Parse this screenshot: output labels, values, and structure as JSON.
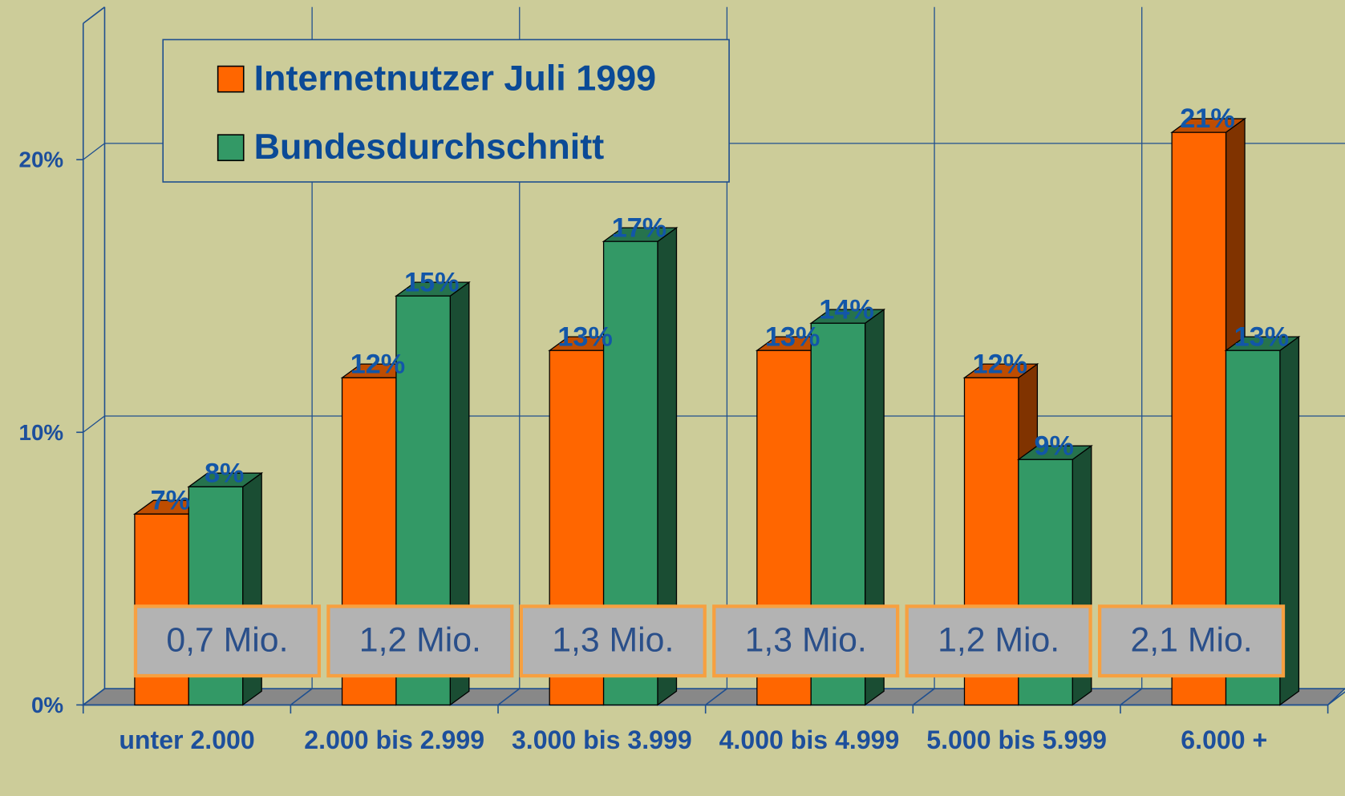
{
  "chart_data": {
    "type": "bar3d",
    "categories": [
      "unter 2.000",
      "2.000 bis 2.999",
      "3.000 bis 3.999",
      "4.000 bis 4.999",
      "5.000 bis 5.999",
      "6.000 +"
    ],
    "series": [
      {
        "name": "Internetnutzer Juli 1999",
        "color": "#ff6600",
        "values": [
          7,
          12,
          13,
          13,
          12,
          21
        ],
        "value_labels": [
          "7%",
          "12%",
          "13%",
          "13%",
          "12%",
          "21%"
        ]
      },
      {
        "name": "Bundesdurchschnitt",
        "color": "#339966",
        "values": [
          8,
          15,
          17,
          14,
          9,
          13
        ],
        "value_labels": [
          "8%",
          "15%",
          "17%",
          "14%",
          "9%",
          "13%"
        ]
      }
    ],
    "ylim": [
      0,
      25
    ],
    "yticks": [
      {
        "value": 0,
        "label": "0%"
      },
      {
        "value": 10,
        "label": "10%"
      },
      {
        "value": 20,
        "label": "20%"
      }
    ],
    "grid": true,
    "legend": "top-left",
    "annotations": [
      "0,7 Mio.",
      "1,2 Mio.",
      "1,3 Mio.",
      "1,3 Mio.",
      "1,2 Mio.",
      "2,1 Mio."
    ]
  }
}
